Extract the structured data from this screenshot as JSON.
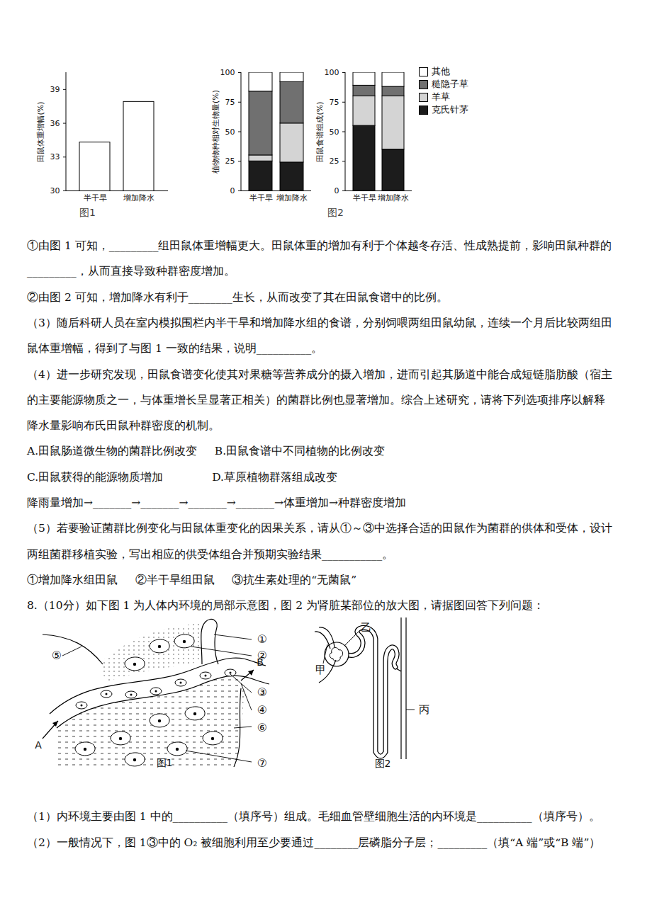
{
  "chart_data": [
    {
      "type": "bar",
      "y_label": "田鼠体重增幅(%)",
      "categories": [
        "半干旱",
        "增加降水"
      ],
      "values": [
        34.3,
        37.9
      ],
      "color": "#ffffff",
      "ylim": [
        30,
        40.5
      ],
      "yticks": [
        30,
        33,
        36,
        39
      ]
    },
    {
      "type": "bar",
      "stacked": true,
      "y_label": "植物物种相对生物量(%)",
      "categories": [
        "半干旱",
        "增加降水"
      ],
      "series": [
        {
          "name": "克氏针茅",
          "color": "#1c1c1c",
          "values": [
            25,
            24
          ]
        },
        {
          "name": "羊草",
          "color": "#d4d4d4",
          "values": [
            5,
            33
          ]
        },
        {
          "name": "糙隐子草",
          "color": "#707070",
          "values": [
            54,
            35
          ]
        },
        {
          "name": "其他",
          "color": "#ffffff",
          "values": [
            16,
            8
          ]
        }
      ],
      "ylim": [
        0,
        100
      ],
      "yticks": [
        0,
        25,
        50,
        75,
        100
      ]
    },
    {
      "type": "bar",
      "stacked": true,
      "y_label": "田鼠食谱组成(%)",
      "categories": [
        "半干旱",
        "增加降水"
      ],
      "series": [
        {
          "name": "克氏针茅",
          "color": "#1c1c1c",
          "values": [
            55,
            35
          ]
        },
        {
          "name": "羊草",
          "color": "#d4d4d4",
          "values": [
            25,
            45
          ]
        },
        {
          "name": "糙隐子草",
          "color": "#707070",
          "values": [
            9,
            8
          ]
        },
        {
          "name": "其他",
          "color": "#ffffff",
          "values": [
            11,
            12
          ]
        }
      ],
      "ylim": [
        0,
        100
      ],
      "yticks": [
        0,
        25,
        50,
        75,
        100
      ],
      "legend": "right"
    }
  ],
  "chart_captions": [
    "图1",
    "图2"
  ],
  "text_before": [
    "①由图 1 可知，_________组田鼠体重增幅更大。田鼠体重的增加有利于个体越冬存活、性成熟提前，影响田鼠种群的",
    "_________，从而直接导致种群密度增加。",
    "②由图 2 可知，增加降水有利于________生长，从而改变了其在田鼠食谱中的比例。",
    "（3）随后科研人员在室内模拟围栏内半干旱和增加降水组的食谱，分别饲喂两组田鼠幼鼠，连续一个月后比较两组田",
    "鼠体重增幅，得到了与图 1 一致的结果，说明__________。",
    "（4）进一步研究发现，田鼠食谱变化使其对果糖等营养成分的摄入增加，进而引起其肠道中能合成短链脂肪酸（宿主",
    "的主要能源物质之一，与体重增长呈显著正相关）的菌群比例也显著增加。综合上述研究，请将下列选项排序以解释",
    "降水量影响布氏田鼠种群密度的机制。",
    "A.田鼠肠道微生物的菌群比例改变     B.田鼠食谱中不同植物的比例改变",
    "C.田鼠获得的能源物质增加              D.草原植物群落组成改变",
    "降雨量增加→_______→_______→_______→_______→体重增加→种群密度增加",
    "（5）若要验证菌群比例变化与田鼠体重变化的因果关系，请从①～③中选择合适的田鼠作为菌群的供体和受体，设计",
    "两组菌群移植实验，写出相应的供受体组合并预期实验结果___________。",
    "①增加降水组田鼠     ②半干旱组田鼠     ③抗生素处理的“无菌鼠”",
    "8.（10分）如下图 1 为人体内环境的局部示意图，图 2 为肾脏某部位的放大图，请据图回答下列问题："
  ],
  "diagram_1": {
    "labels": [
      "①",
      "②",
      "③",
      "④",
      "⑤",
      "⑥",
      "⑦"
    ],
    "arrows": [
      "A",
      "B"
    ],
    "caption": "图1"
  },
  "diagram_2": {
    "labels": [
      "甲",
      "乙",
      "丙"
    ],
    "caption": "图2"
  },
  "text_after": [
    "（1）内环境主要由图 1 中的__________（填序号）组成。毛细血管壁细胞生活的内环境是__________（填序号）。",
    "（2）一般情况下，图 1③中的 O₂ 被细胞利用至少要通过________层磷脂分子层；_________（填“A 端”或“B 端”）"
  ]
}
